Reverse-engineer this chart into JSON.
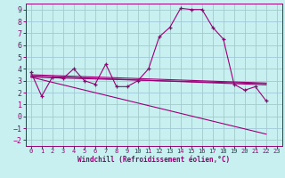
{
  "xlabel": "Windchill (Refroidissement éolien,°C)",
  "bg_color": "#c8f0f0",
  "grid_color": "#a0c8d8",
  "line_color": "#990077",
  "xlim": [
    -0.5,
    23.5
  ],
  "ylim": [
    -2.5,
    9.5
  ],
  "xticks": [
    0,
    1,
    2,
    3,
    4,
    5,
    6,
    7,
    8,
    9,
    10,
    11,
    12,
    13,
    14,
    15,
    16,
    17,
    18,
    19,
    20,
    21,
    22,
    23
  ],
  "yticks": [
    -2,
    -1,
    0,
    1,
    2,
    3,
    4,
    5,
    6,
    7,
    8,
    9
  ],
  "main_x": [
    0,
    1,
    2,
    3,
    4,
    5,
    6,
    7,
    8,
    9,
    10,
    11,
    12,
    13,
    14,
    15,
    16,
    17,
    18,
    19,
    20,
    21,
    22
  ],
  "main_y": [
    3.7,
    1.7,
    3.3,
    3.2,
    4.0,
    3.0,
    2.7,
    4.4,
    2.5,
    2.5,
    3.0,
    4.0,
    6.7,
    7.5,
    9.1,
    9.0,
    9.0,
    7.5,
    6.5,
    2.7,
    2.2,
    2.5,
    1.3
  ],
  "trend1_x": [
    0,
    22
  ],
  "trend1_y": [
    3.5,
    2.8
  ],
  "trend2_x": [
    0,
    22
  ],
  "trend2_y": [
    3.3,
    -1.5
  ],
  "trend3_x": [
    0,
    22
  ],
  "trend3_y": [
    3.4,
    2.65
  ],
  "trend4_x": [
    0,
    22
  ],
  "trend4_y": [
    3.3,
    2.75
  ],
  "xlabel_fontsize": 5.5,
  "tick_fontsize_x": 5.0,
  "tick_fontsize_y": 6.0
}
